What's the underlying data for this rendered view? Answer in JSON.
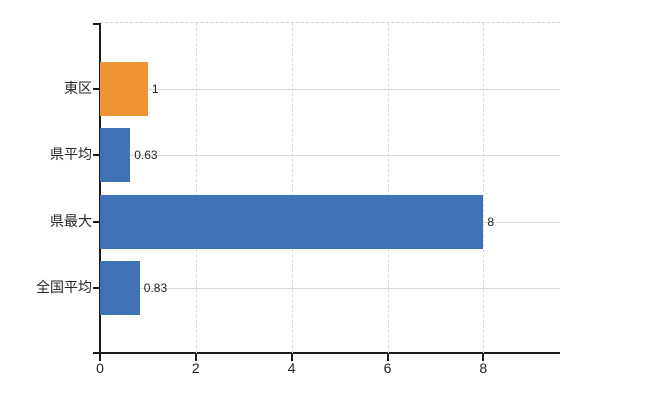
{
  "chart_data": {
    "type": "bar",
    "orientation": "horizontal",
    "title": "",
    "xlabel": "",
    "ylabel": "",
    "categories": [
      "東区",
      "県平均",
      "県最大",
      "全国平均"
    ],
    "values": [
      1,
      0.63,
      8,
      0.83
    ],
    "value_labels": [
      "1",
      "0.63",
      "8",
      "0.83"
    ],
    "series_colors": [
      "#ee9434",
      "#3e72b4",
      "#3e72b4",
      "#3e72b4"
    ],
    "x_ticks": [
      0,
      2,
      4,
      6,
      8
    ],
    "x_tick_labels": [
      "0",
      "2",
      "4",
      "6",
      "8"
    ],
    "xlim": [
      0,
      9.6
    ],
    "grid": true,
    "legend": false,
    "gridline_color_h": "#d8ddd2",
    "gridline_color_v": "#d9dde0",
    "axis_color": "#1a1a1a",
    "background_color": "#ffffff"
  }
}
